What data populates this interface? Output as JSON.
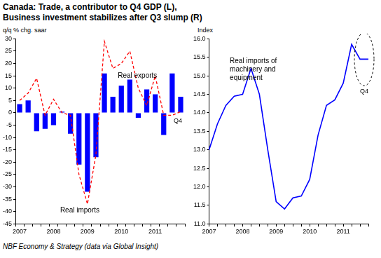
{
  "title": [
    "Canada: Trade, a contributor to Q4 GDP (L),",
    "Business investment stabilizes after Q3 slump (R)"
  ],
  "source": "NBF Economy & Strategy (data via Global Insight)",
  "chart_data": [
    {
      "type": "bar",
      "y_label": "q/q % chg. saar",
      "categories": [
        "2007",
        null,
        null,
        null,
        "2008",
        null,
        null,
        null,
        "2009",
        null,
        null,
        null,
        "2010",
        null,
        null,
        null,
        "2011",
        null,
        null,
        null
      ],
      "series": [
        {
          "name": "Real exports",
          "type": "bar",
          "color": "#0000ff",
          "values": [
            3.5,
            5,
            -7.5,
            -6.5,
            -5,
            0.5,
            -8.5,
            -21,
            -32,
            -18,
            16,
            6.5,
            11,
            13.5,
            -2,
            9.5,
            7.5,
            -9,
            16,
            6.5
          ]
        },
        {
          "name": "Real imports",
          "type": "line",
          "color": "#ff0000",
          "line_style": "dashed",
          "values": [
            5,
            8,
            14,
            -1,
            5.5,
            0,
            -1,
            -25,
            -37,
            -17,
            29,
            18,
            20,
            25,
            10,
            3,
            15,
            -1,
            -1,
            0.5
          ]
        }
      ],
      "annotations": [
        "Q4"
      ],
      "ylim": [
        -45,
        30
      ],
      "yticks": [
        -45,
        -40,
        -35,
        -30,
        -25,
        -20,
        -15,
        -10,
        -5,
        0,
        5,
        10,
        15,
        20,
        25,
        30
      ],
      "grid": false
    },
    {
      "type": "line",
      "y_label": "Index",
      "categories": [
        "2007",
        null,
        null,
        null,
        "2008",
        null,
        null,
        null,
        "2009",
        null,
        null,
        null,
        "2010",
        null,
        null,
        null,
        "2011",
        null,
        null,
        null
      ],
      "series": [
        {
          "name": "Real imports of machinery and equipment",
          "color": "#0000ff",
          "values": [
            13.0,
            13.7,
            14.2,
            14.45,
            14.5,
            15.2,
            14.5,
            13.0,
            11.6,
            11.4,
            11.7,
            11.75,
            12.2,
            13.4,
            14.2,
            14.35,
            14.8,
            15.85,
            15.45,
            15.45
          ]
        }
      ],
      "annotations": [
        "Q4"
      ],
      "ylim": [
        11,
        16
      ],
      "yticks": [
        {
          "value": 11,
          "label": "11.0"
        },
        11.5,
        {
          "value": 12,
          "label": "12.0"
        },
        12.5,
        {
          "value": 13,
          "label": "13.0"
        },
        13.5,
        {
          "value": 14,
          "label": "14.0"
        },
        14.5,
        {
          "value": 15,
          "label": "15.0"
        },
        15.5,
        {
          "value": 16,
          "label": "16.0"
        }
      ],
      "grid": false
    }
  ]
}
